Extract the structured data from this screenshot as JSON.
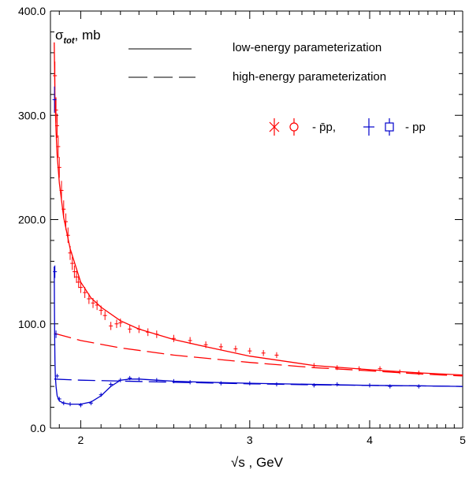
{
  "chart_data": {
    "type": "scatter",
    "title": "",
    "ylabel_symbol": "σ",
    "ylabel_subscript": "tot",
    "ylabel_unit": ", mb",
    "xlabel_symbol": "√s",
    "xlabel_unit": " ,  GeV",
    "x_scale": "log",
    "xlim": [
      1.86,
      5.0
    ],
    "ylim": [
      0,
      400
    ],
    "grid": false,
    "legend_position": "top-right",
    "xticks": [
      {
        "value": 2,
        "label": "2"
      },
      {
        "value": 3,
        "label": "3"
      },
      {
        "value": 4,
        "label": "4"
      },
      {
        "value": 5,
        "label": "5"
      }
    ],
    "yticks": [
      {
        "value": 0,
        "label": "0.0"
      },
      {
        "value": 100,
        "label": "100.0"
      },
      {
        "value": 200,
        "label": "200.0"
      },
      {
        "value": 300,
        "label": "300.0"
      },
      {
        "value": 400,
        "label": "400.0"
      }
    ],
    "legend": {
      "low_energy": "low-energy parameterization",
      "high_energy": "high-energy parameterization",
      "pbar_label": "- p̄p,",
      "pp_label": "- pp"
    },
    "colors": {
      "pbarp": "#ff0000",
      "pp": "#0000cc",
      "axis": "#000000"
    },
    "series": [
      {
        "name": "low-energy parameterization p̄p",
        "kind": "solid-line",
        "group": "pbarp",
        "x": [
          1.877,
          1.88,
          1.885,
          1.89,
          1.9,
          1.92,
          1.95,
          2.0,
          2.05,
          2.1,
          2.2,
          2.3,
          2.5,
          2.7,
          3.0,
          3.5,
          4.0,
          4.5,
          5.0
        ],
        "y": [
          370,
          318,
          285,
          262,
          235,
          202,
          172,
          140,
          125,
          116,
          103,
          95,
          85,
          78,
          69,
          60,
          56,
          53,
          51
        ]
      },
      {
        "name": "high-energy parameterization p̄p",
        "kind": "dashed-line",
        "group": "pbarp",
        "x": [
          1.877,
          2.0,
          2.2,
          2.5,
          3.0,
          3.5,
          4.0,
          4.5,
          5.0
        ],
        "y": [
          91,
          84,
          77,
          70,
          63,
          58,
          55,
          52,
          50
        ]
      },
      {
        "name": "low-energy parameterization pp",
        "kind": "solid-line",
        "group": "pp",
        "x": [
          1.877,
          1.878,
          1.879,
          1.88,
          1.882,
          1.885,
          1.89,
          1.9,
          1.92,
          1.95,
          2.0,
          2.05,
          2.1,
          2.15,
          2.2,
          2.25,
          2.3,
          2.4,
          2.5,
          2.7,
          3.0,
          3.5,
          4.0,
          4.5,
          5.0
        ],
        "y": [
          155,
          115,
          85,
          65,
          50,
          40,
          31,
          26,
          24,
          23,
          23,
          25,
          31,
          40,
          46,
          47,
          47,
          46,
          45,
          44,
          43,
          42,
          41,
          40.5,
          40
        ]
      },
      {
        "name": "high-energy parameterization pp",
        "kind": "dashed-line",
        "group": "pp",
        "x": [
          1.877,
          2.0,
          2.5,
          3.0,
          3.5,
          4.0,
          4.5,
          5.0
        ],
        "y": [
          47,
          46,
          44,
          42.5,
          41.5,
          41,
          40.5,
          40
        ]
      },
      {
        "name": "p̄p data",
        "kind": "points",
        "group": "pbarp",
        "x": [
          1.88,
          1.885,
          1.89,
          1.895,
          1.9,
          1.91,
          1.92,
          1.93,
          1.94,
          1.95,
          1.96,
          1.97,
          1.98,
          1.99,
          2.0,
          2.02,
          2.04,
          2.06,
          2.08,
          2.1,
          2.12,
          2.15,
          2.18,
          2.2,
          2.25,
          2.3,
          2.35,
          2.4,
          2.5,
          2.6,
          2.7,
          2.8,
          2.9,
          3.0,
          3.1,
          3.2,
          3.5,
          3.7,
          3.9,
          4.1,
          4.3,
          4.5
        ],
        "y": [
          338,
          305,
          290,
          270,
          250,
          228,
          210,
          198,
          185,
          168,
          158,
          150,
          145,
          140,
          135,
          130,
          124,
          120,
          118,
          113,
          108,
          98,
          100,
          101,
          95,
          95,
          92,
          90,
          86,
          84,
          80,
          78,
          76,
          74,
          72,
          70,
          60,
          58,
          57,
          57,
          54,
          53
        ]
      },
      {
        "name": "pp data",
        "kind": "points",
        "group": "pp",
        "x": [
          1.878,
          1.88,
          1.885,
          1.89,
          1.9,
          1.92,
          1.95,
          2.0,
          2.05,
          2.1,
          2.15,
          2.2,
          2.25,
          2.3,
          2.4,
          2.5,
          2.6,
          2.8,
          3.0,
          3.2,
          3.5,
          3.7,
          4.0,
          4.2,
          4.5
        ],
        "y": [
          315,
          150,
          90,
          50,
          28,
          24,
          23,
          22,
          24,
          32,
          42,
          46,
          48,
          47,
          46,
          45,
          44,
          43,
          43,
          42,
          41,
          42,
          41,
          40,
          40
        ]
      }
    ]
  }
}
